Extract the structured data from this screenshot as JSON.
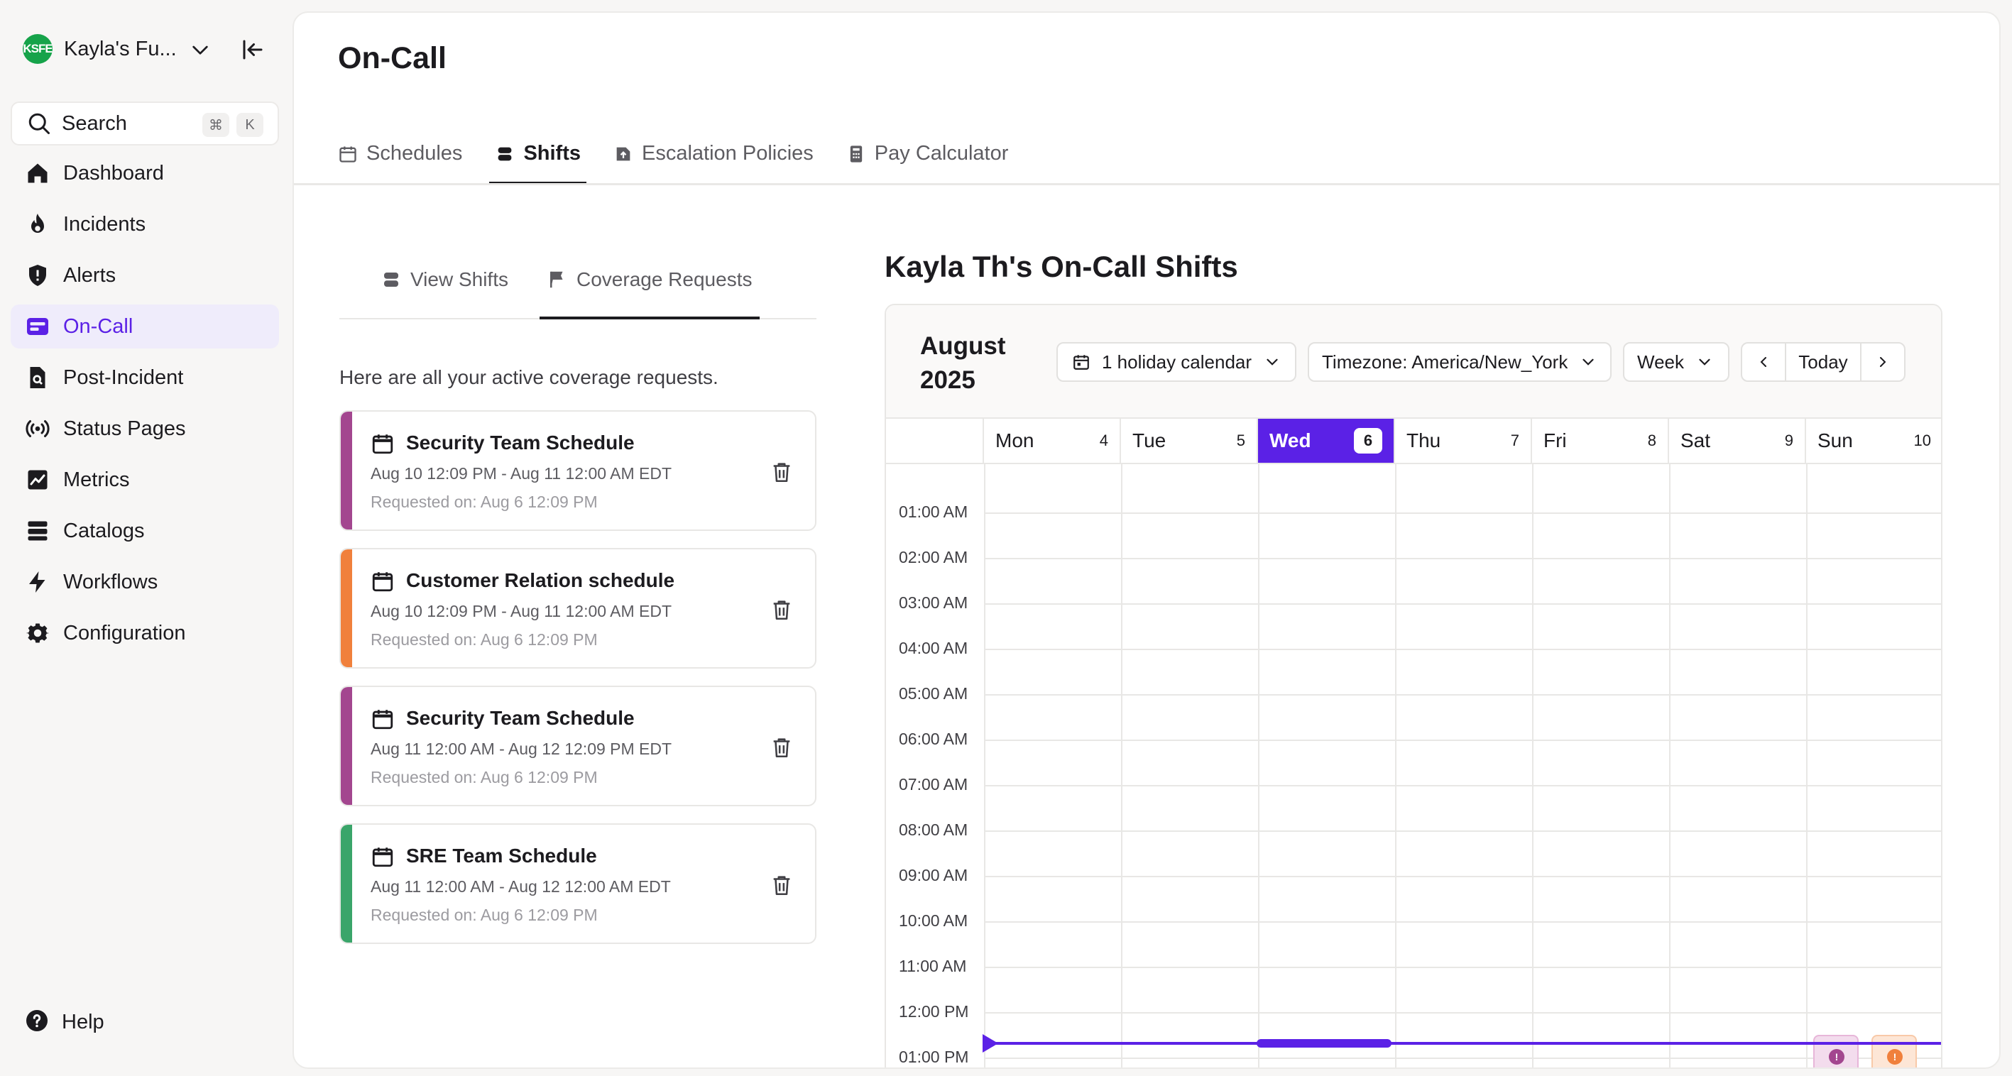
{
  "sidebar": {
    "org": {
      "initials": "KSFE",
      "name": "Kayla's Fu..."
    },
    "search": {
      "label": "Search",
      "shortcut_mod": "⌘",
      "shortcut_key": "K"
    },
    "items": [
      {
        "label": "Dashboard",
        "icon": "home-icon"
      },
      {
        "label": "Incidents",
        "icon": "flame-icon"
      },
      {
        "label": "Alerts",
        "icon": "shield-alert-icon"
      },
      {
        "label": "On-Call",
        "icon": "on-call-icon",
        "active": true
      },
      {
        "label": "Post-Incident",
        "icon": "document-search-icon"
      },
      {
        "label": "Status Pages",
        "icon": "broadcast-icon"
      },
      {
        "label": "Metrics",
        "icon": "chart-icon"
      },
      {
        "label": "Catalogs",
        "icon": "catalog-icon"
      },
      {
        "label": "Workflows",
        "icon": "lightning-icon"
      },
      {
        "label": "Configuration",
        "icon": "gear-icon"
      }
    ],
    "help": "Help"
  },
  "page": {
    "title": "On-Call",
    "tabs": [
      {
        "label": "Schedules",
        "icon": "calendar-icon"
      },
      {
        "label": "Shifts",
        "icon": "shifts-icon",
        "active": true
      },
      {
        "label": "Escalation Policies",
        "icon": "escalation-icon"
      },
      {
        "label": "Pay Calculator",
        "icon": "calculator-icon"
      }
    ]
  },
  "shifts_panel": {
    "subtabs": [
      {
        "label": "View Shifts",
        "icon": "shifts-icon"
      },
      {
        "label": "Coverage Requests",
        "icon": "flag-icon",
        "active": true
      }
    ],
    "intro": "Here are all your active coverage requests.",
    "requests": [
      {
        "title": "Security Team Schedule",
        "range": "Aug 10 12:09 PM - Aug 11 12:00 AM EDT",
        "requested": "Requested on: Aug 6 12:09 PM",
        "color": "#a3468f"
      },
      {
        "title": "Customer Relation schedule",
        "range": "Aug 10 12:09 PM - Aug 11 12:00 AM EDT",
        "requested": "Requested on: Aug 6 12:09 PM",
        "color": "#f0803c"
      },
      {
        "title": "Security Team Schedule",
        "range": "Aug 11 12:00 AM - Aug 12 12:09 PM EDT",
        "requested": "Requested on: Aug 6 12:09 PM",
        "color": "#a3468f"
      },
      {
        "title": "SRE Team Schedule",
        "range": "Aug 11 12:00 AM - Aug 12 12:00 AM EDT",
        "requested": "Requested on: Aug 6 12:09 PM",
        "color": "#3aa56a"
      }
    ]
  },
  "calendar": {
    "title": "Kayla Th's On-Call Shifts",
    "month_line1": "August",
    "month_line2": "2025",
    "holiday": "1 holiday calendar",
    "timezone": "Timezone: America/New_York",
    "view": "Week",
    "today_label": "Today",
    "days": [
      {
        "name": "Mon",
        "num": "4"
      },
      {
        "name": "Tue",
        "num": "5"
      },
      {
        "name": "Wed",
        "num": "6",
        "today": true
      },
      {
        "name": "Thu",
        "num": "7"
      },
      {
        "name": "Fri",
        "num": "8"
      },
      {
        "name": "Sat",
        "num": "9"
      },
      {
        "name": "Sun",
        "num": "10"
      }
    ],
    "hours": [
      "01:00 AM",
      "02:00 AM",
      "03:00 AM",
      "04:00 AM",
      "05:00 AM",
      "06:00 AM",
      "07:00 AM",
      "08:00 AM",
      "09:00 AM",
      "10:00 AM",
      "11:00 AM",
      "12:00 PM",
      "01:00 PM"
    ],
    "events": [
      {
        "day": "Sun",
        "color": "#a3468f",
        "bg": "#f3dced",
        "icon": "!"
      },
      {
        "day": "Sun",
        "color": "#f0803c",
        "bg": "#fde6d6",
        "icon": "!"
      }
    ],
    "accent": "#5b21e6"
  }
}
